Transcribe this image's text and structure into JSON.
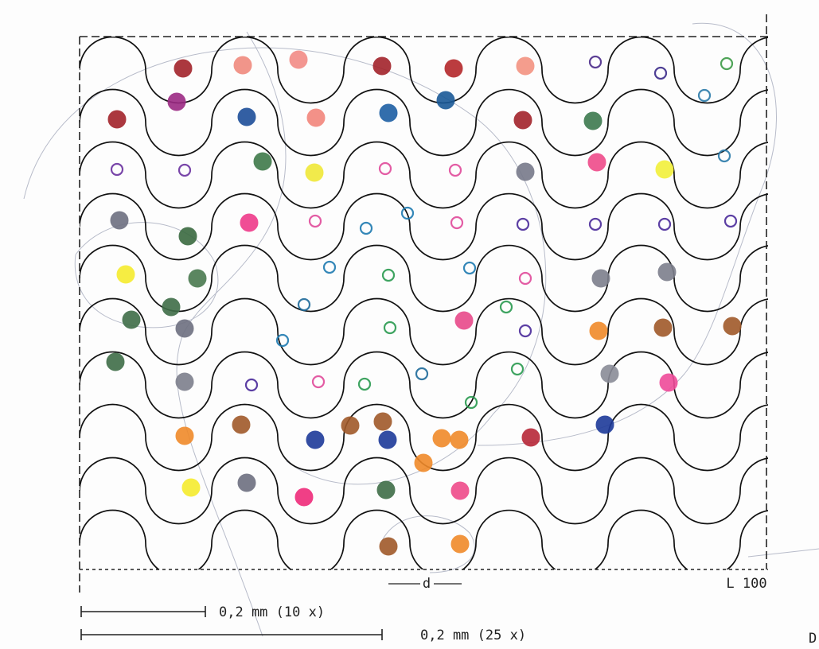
{
  "scale_bars": [
    "0,2 mm (10 x)",
    "0,2 mm (25 x)"
  ],
  "dimension_label": "d",
  "plate_label": "L 100",
  "margin_mark": "D"
}
